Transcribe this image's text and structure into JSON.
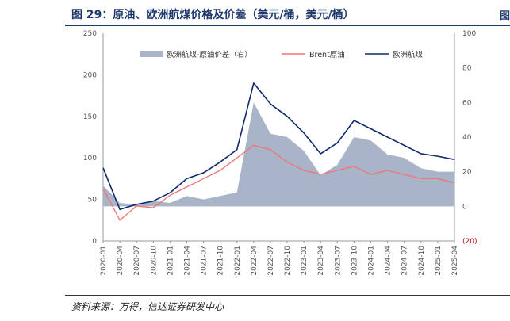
{
  "header": {
    "title": "图 29：原油、欧洲航煤价格及价差（美元/桶，美元/桶）",
    "edge_glyph": "图"
  },
  "footer": {
    "source": "资料来源：万得，信达证券研发中心"
  },
  "chart_data": {
    "type": "line",
    "title": "原油、欧洲航煤价格及价差（美元/桶，美元/桶）",
    "x": [
      "2020-01",
      "2020-04",
      "2020-07",
      "2020-10",
      "2021-01",
      "2021-04",
      "2021-07",
      "2021-10",
      "2022-01",
      "2022-04",
      "2022-07",
      "2022-10",
      "2023-01",
      "2023-04",
      "2023-07",
      "2023-10",
      "2024-01",
      "2024-04",
      "2024-07",
      "2024-10",
      "2025-01",
      "2025-04"
    ],
    "left_axis": {
      "ylim": [
        0,
        250
      ],
      "ticks": [
        "0",
        "50",
        "100",
        "150",
        "200",
        "250"
      ]
    },
    "right_axis": {
      "ylim": [
        -20,
        100
      ],
      "ticks": [
        "(20)",
        "0",
        "20",
        "40",
        "60",
        "80",
        "100"
      ]
    },
    "legend": [
      "欧洲航煤-原油价差（右）",
      "Brent原油",
      "欧洲航煤"
    ],
    "colors": {
      "spread": "#aab4c8",
      "brent": "#f27272",
      "jet": "#0f2a6b"
    },
    "series": [
      {
        "name": "欧洲航煤",
        "axis": "left",
        "values": [
          88,
          38,
          44,
          48,
          58,
          75,
          82,
          95,
          110,
          190,
          165,
          150,
          130,
          105,
          118,
          145,
          135,
          125,
          115,
          105,
          102,
          98
        ]
      },
      {
        "name": "Brent原油",
        "axis": "left",
        "values": [
          63,
          25,
          42,
          40,
          55,
          65,
          75,
          85,
          100,
          115,
          110,
          95,
          85,
          80,
          85,
          90,
          80,
          85,
          80,
          75,
          75,
          70
        ]
      },
      {
        "name": "欧洲航煤-原油价差（右）",
        "axis": "right",
        "values": [
          12,
          2,
          1,
          3,
          2,
          6,
          4,
          6,
          8,
          60,
          42,
          40,
          32,
          18,
          24,
          40,
          38,
          30,
          28,
          22,
          20,
          20
        ]
      }
    ]
  }
}
